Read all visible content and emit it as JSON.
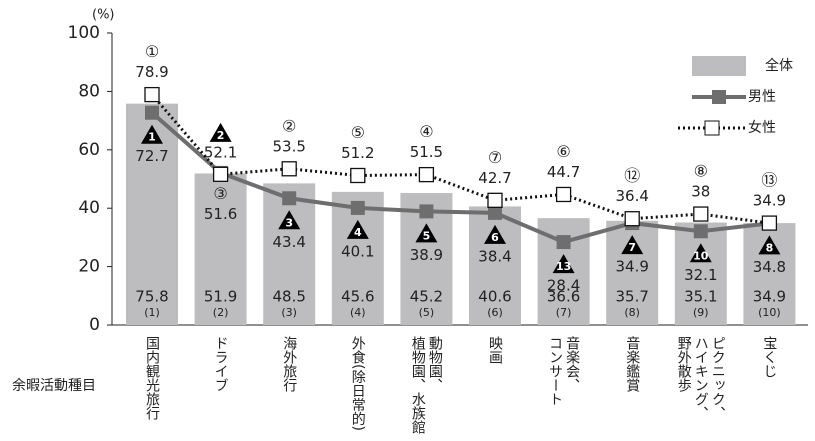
{
  "chart_data": {
    "type": "bar_line",
    "y_unit": "(%)",
    "x_label": "余暇活動種目",
    "categories": [
      [
        "国内観光旅行"
      ],
      [
        "ドライブ"
      ],
      [
        "海外旅行"
      ],
      [
        "外食(除日常的)"
      ],
      [
        "動物園、",
        "植物園、水族館"
      ],
      [
        "映画"
      ],
      [
        "音楽会、",
        "コンサート"
      ],
      [
        "音楽鑑賞"
      ],
      [
        "ピクニック、",
        "ハイキング、",
        "野外散歩"
      ],
      [
        "宝くじ"
      ]
    ],
    "ylim": [
      0,
      100
    ],
    "yticks": [
      0,
      20,
      40,
      60,
      80,
      100
    ],
    "series": [
      {
        "name": "全体",
        "kind": "bar",
        "color": "#bdbdbf",
        "values": [
          75.8,
          51.9,
          48.5,
          45.6,
          45.2,
          40.6,
          36.6,
          35.7,
          35.1,
          34.9
        ],
        "rank_labels": [
          "(1)",
          "(2)",
          "(3)",
          "(4)",
          "(5)",
          "(6)",
          "(7)",
          "(8)",
          "(9)",
          "(10)"
        ]
      },
      {
        "name": "男性",
        "kind": "line",
        "color": "#6e6e6e",
        "values": [
          72.7,
          52.1,
          43.4,
          40.1,
          38.9,
          38.4,
          28.4,
          34.9,
          32.1,
          34.8
        ],
        "rank_labels": [
          1,
          2,
          3,
          4,
          5,
          6,
          13,
          7,
          10,
          8
        ]
      },
      {
        "name": "女性",
        "kind": "dotted-line",
        "color": "#111111",
        "values": [
          78.9,
          51.6,
          53.5,
          51.2,
          51.5,
          42.7,
          44.7,
          36.4,
          38.0,
          34.9
        ],
        "rank_labels": [
          "①",
          "③",
          "②",
          "⑤",
          "④",
          "⑦",
          "⑥",
          "⑫",
          "⑧",
          "⑬"
        ]
      }
    ]
  }
}
